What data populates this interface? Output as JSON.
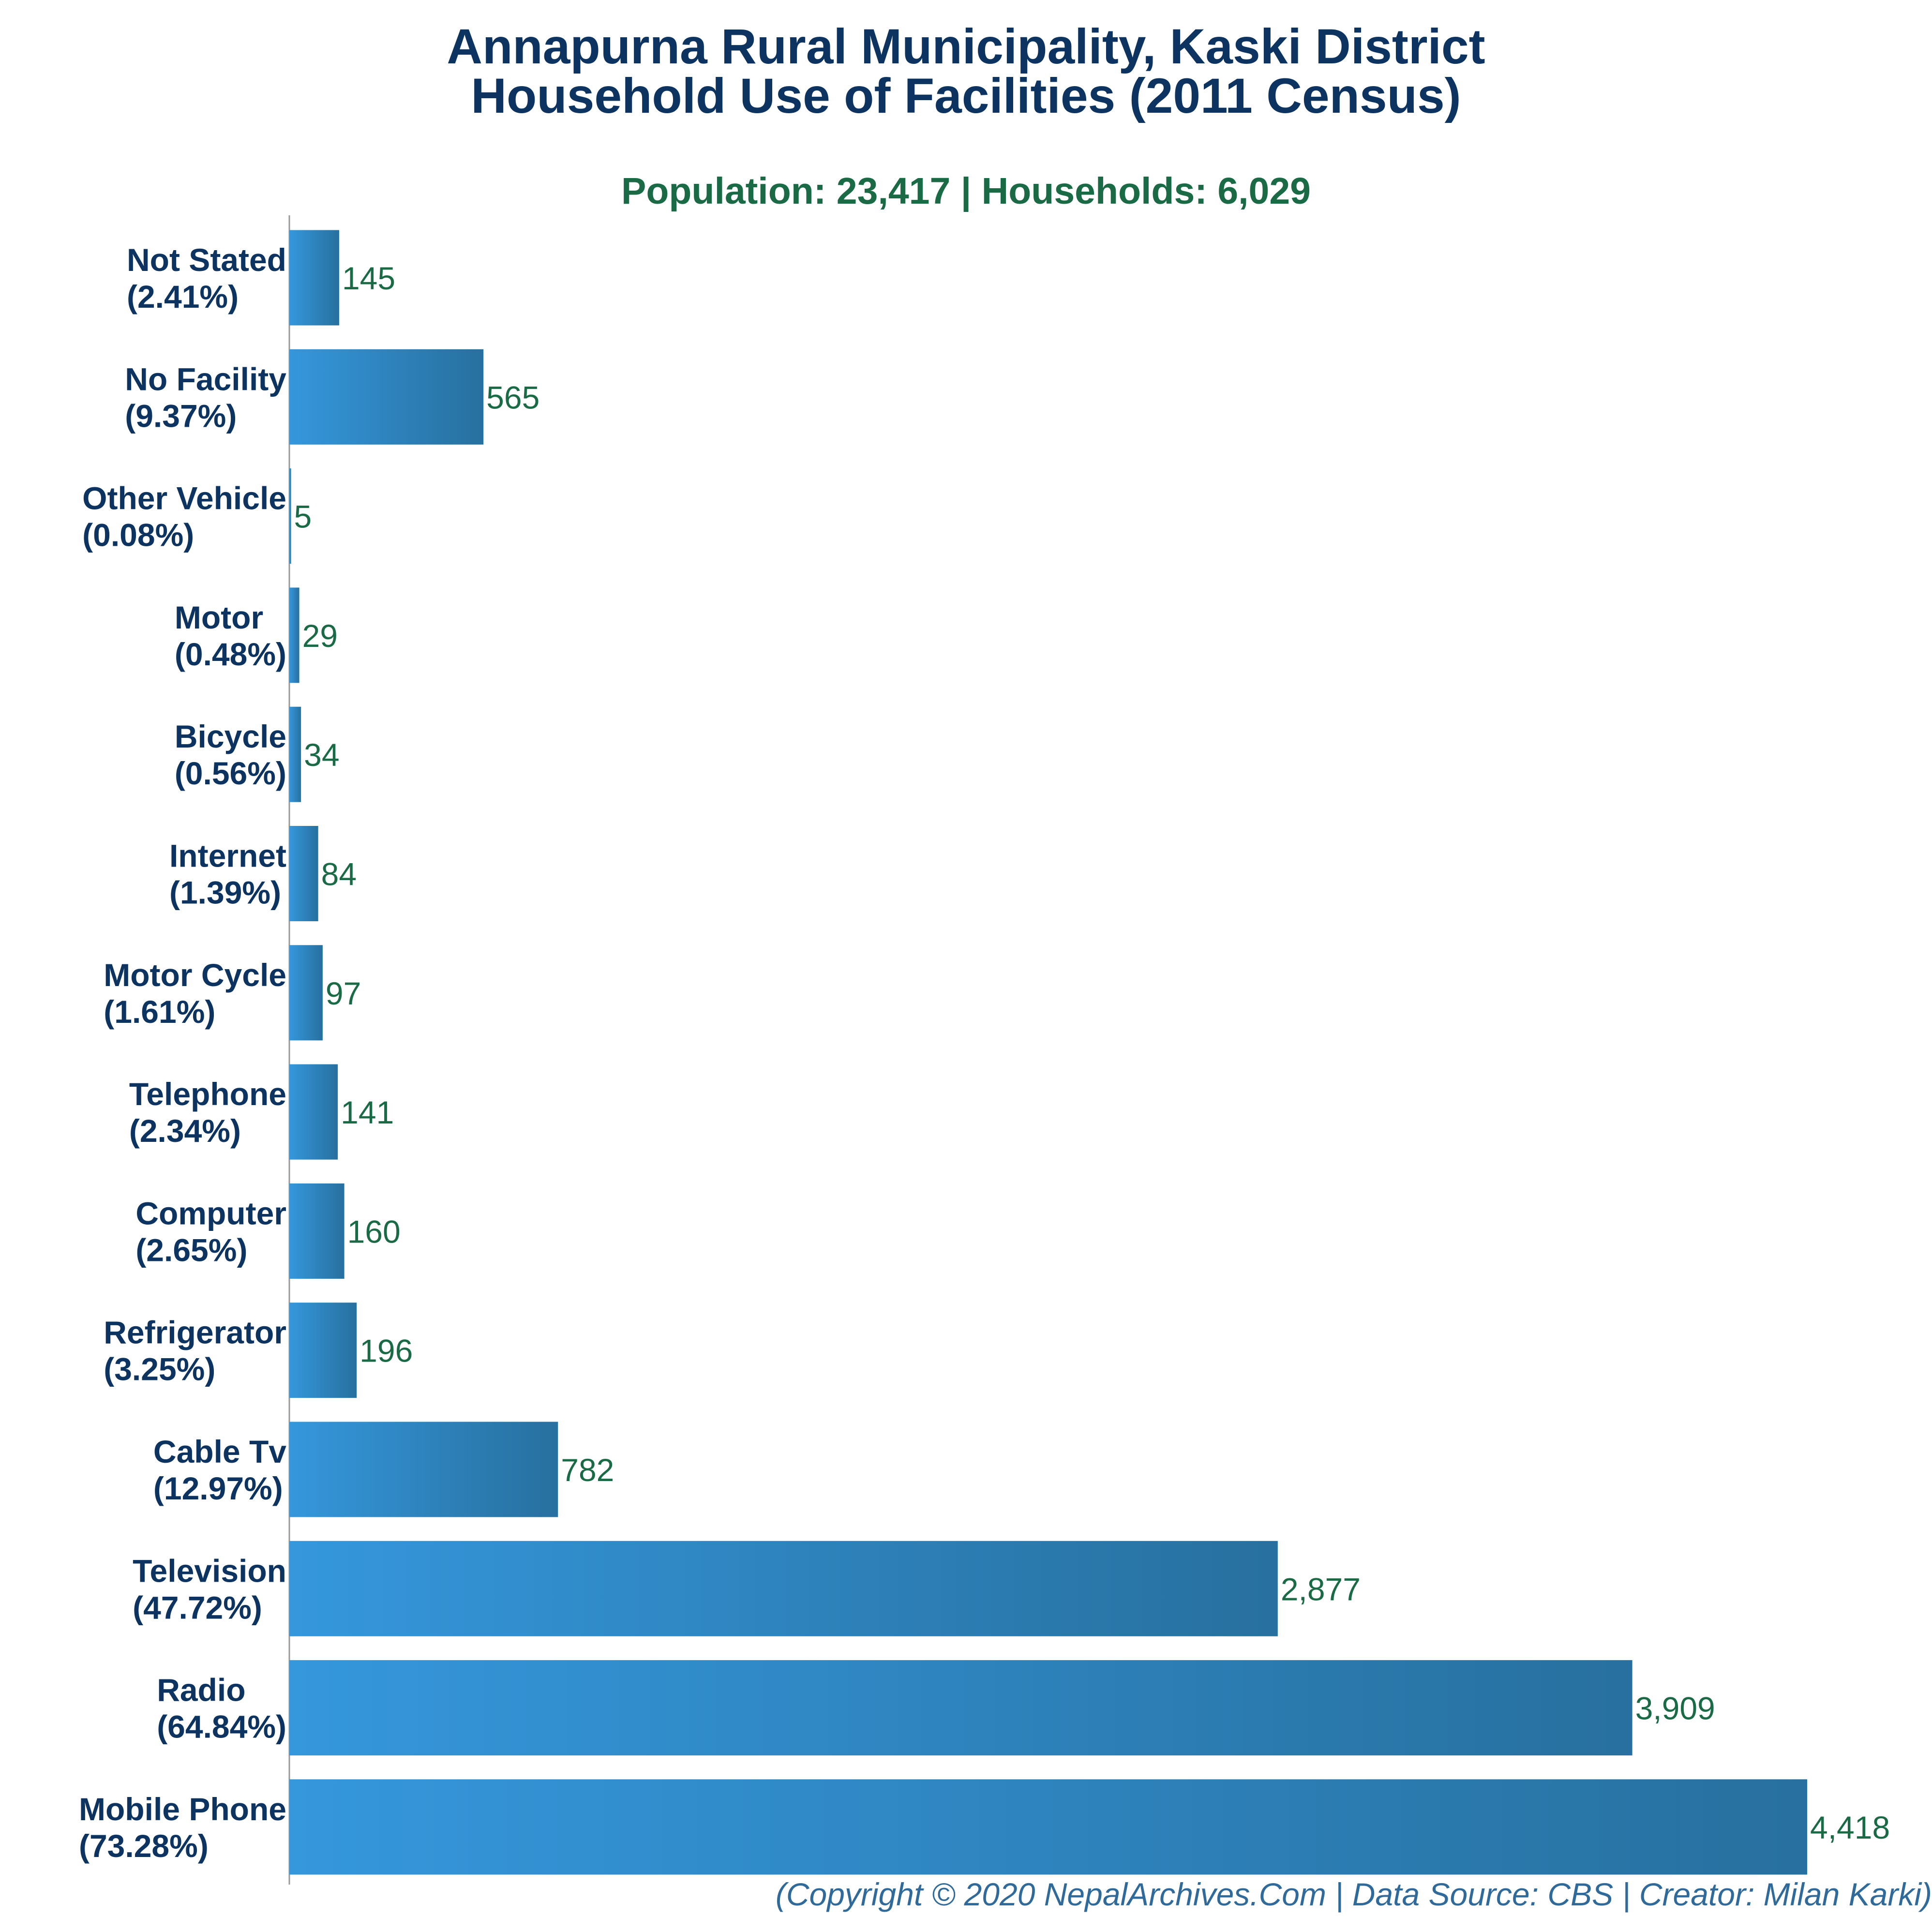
{
  "title_line1": "Annapurna Rural Municipality, Kaski District",
  "title_line2": "Household Use of Facilities (2011 Census)",
  "subtitle": "Population: 23,417 | Households: 6,029",
  "footer": "(Copyright © 2020 NepalArchives.Com | Data Source: CBS | Creator: Milan Karki)",
  "colors": {
    "bar_light": "#3597dc",
    "bar_dark": "#27709f",
    "title": "#0d3460",
    "values": "#1a6b45"
  },
  "chart_data": {
    "type": "bar",
    "orientation": "horizontal",
    "title": "Annapurna Rural Municipality, Kaski District Household Use of Facilities (2011 Census)",
    "xlabel": "",
    "ylabel": "",
    "xlim": [
      0,
      4418
    ],
    "grid": false,
    "legend": "none",
    "bars": [
      {
        "name": "Not Stated",
        "pct": "(2.41%)",
        "value": 145,
        "value_label": "145"
      },
      {
        "name": "No Facility",
        "pct": "(9.37%)",
        "value": 565,
        "value_label": "565"
      },
      {
        "name": "Other Vehicle",
        "pct": "(0.08%)",
        "value": 5,
        "value_label": "5"
      },
      {
        "name": "Motor",
        "pct": "(0.48%)",
        "value": 29,
        "value_label": "29"
      },
      {
        "name": "Bicycle",
        "pct": "(0.56%)",
        "value": 34,
        "value_label": "34"
      },
      {
        "name": "Internet",
        "pct": "(1.39%)",
        "value": 84,
        "value_label": "84"
      },
      {
        "name": "Motor Cycle",
        "pct": "(1.61%)",
        "value": 97,
        "value_label": "97"
      },
      {
        "name": "Telephone",
        "pct": "(2.34%)",
        "value": 141,
        "value_label": "141"
      },
      {
        "name": "Computer",
        "pct": "(2.65%)",
        "value": 160,
        "value_label": "160"
      },
      {
        "name": "Refrigerator",
        "pct": "(3.25%)",
        "value": 196,
        "value_label": "196"
      },
      {
        "name": "Cable Tv",
        "pct": "(12.97%)",
        "value": 782,
        "value_label": "782"
      },
      {
        "name": "Television",
        "pct": "(47.72%)",
        "value": 2877,
        "value_label": "2,877"
      },
      {
        "name": "Radio",
        "pct": "(64.84%)",
        "value": 3909,
        "value_label": "3,909"
      },
      {
        "name": "Mobile Phone",
        "pct": "(73.28%)",
        "value": 4418,
        "value_label": "4,418"
      }
    ]
  }
}
